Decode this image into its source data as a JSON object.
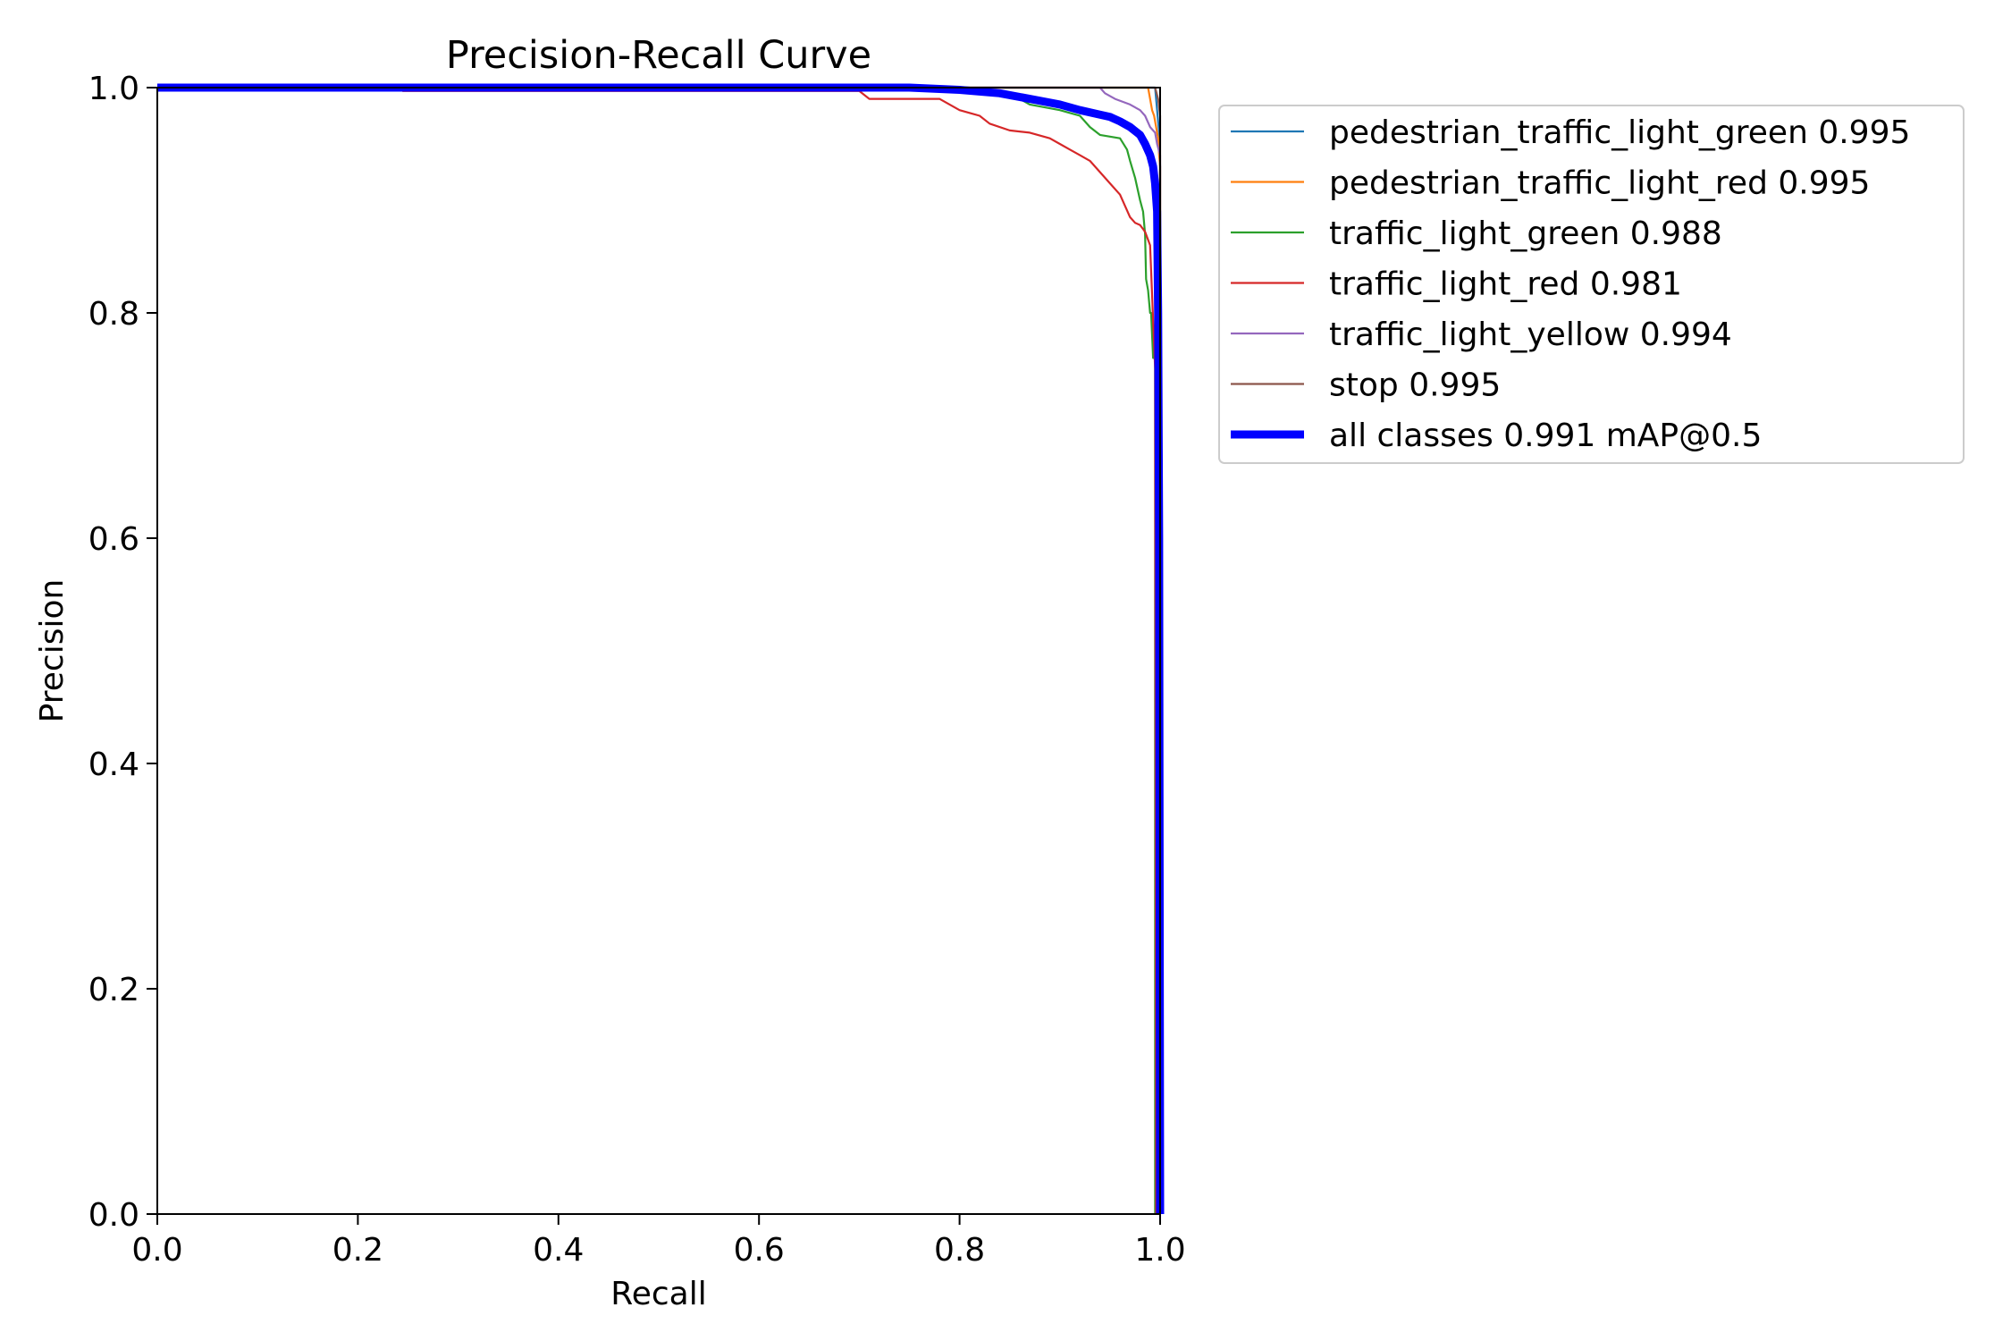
{
  "chart_data": {
    "type": "line",
    "title": "Precision-Recall Curve",
    "xlabel": "Recall",
    "ylabel": "Precision",
    "xlim": [
      0.0,
      1.0
    ],
    "ylim": [
      0.0,
      1.0
    ],
    "x_ticks": [
      "0.0",
      "0.2",
      "0.4",
      "0.6",
      "0.8",
      "1.0"
    ],
    "y_ticks": [
      "0.0",
      "0.2",
      "0.4",
      "0.6",
      "0.8",
      "1.0"
    ],
    "grid": false,
    "legend_position": "outside-right",
    "series": [
      {
        "name": "pedestrian_traffic_light_green 0.995",
        "color": "#1f77b4",
        "width": "thin",
        "points": [
          [
            0,
            1
          ],
          [
            0.995,
            1
          ],
          [
            0.996,
            0.99
          ],
          [
            0.997,
            0.98
          ],
          [
            0.998,
            0.97
          ],
          [
            0.999,
            0.96
          ],
          [
            1.0,
            0.93
          ],
          [
            1.0,
            0.0
          ]
        ]
      },
      {
        "name": "pedestrian_traffic_light_red 0.995",
        "color": "#ff7f0e",
        "width": "thin",
        "points": [
          [
            0,
            1
          ],
          [
            0.988,
            1
          ],
          [
            0.99,
            0.99
          ],
          [
            0.992,
            0.98
          ],
          [
            0.994,
            0.975
          ],
          [
            0.996,
            0.965
          ],
          [
            0.998,
            0.955
          ],
          [
            0.999,
            0.94
          ],
          [
            1.0,
            0.93
          ],
          [
            1.0,
            0.0
          ]
        ]
      },
      {
        "name": "traffic_light_green 0.988",
        "color": "#2ca02c",
        "width": "thin",
        "points": [
          [
            0,
            1
          ],
          [
            0.7,
            1
          ],
          [
            0.78,
            0.998
          ],
          [
            0.82,
            0.995
          ],
          [
            0.86,
            0.99
          ],
          [
            0.87,
            0.985
          ],
          [
            0.9,
            0.98
          ],
          [
            0.92,
            0.975
          ],
          [
            0.93,
            0.965
          ],
          [
            0.94,
            0.958
          ],
          [
            0.96,
            0.955
          ],
          [
            0.967,
            0.945
          ],
          [
            0.97,
            0.935
          ],
          [
            0.975,
            0.92
          ],
          [
            0.98,
            0.9
          ],
          [
            0.983,
            0.89
          ],
          [
            0.985,
            0.87
          ],
          [
            0.986,
            0.83
          ],
          [
            0.988,
            0.82
          ],
          [
            0.99,
            0.8
          ],
          [
            0.991,
            0.8
          ],
          [
            0.993,
            0.76
          ],
          [
            0.995,
            0.76
          ],
          [
            0.995,
            0.0
          ]
        ]
      },
      {
        "name": "traffic_light_red 0.981",
        "color": "#d62728",
        "width": "thin",
        "points": [
          [
            0,
            1
          ],
          [
            0.24,
            1
          ],
          [
            0.245,
            0.997
          ],
          [
            0.7,
            0.997
          ],
          [
            0.71,
            0.99
          ],
          [
            0.78,
            0.99
          ],
          [
            0.8,
            0.98
          ],
          [
            0.82,
            0.975
          ],
          [
            0.83,
            0.968
          ],
          [
            0.85,
            0.962
          ],
          [
            0.87,
            0.96
          ],
          [
            0.89,
            0.955
          ],
          [
            0.9,
            0.95
          ],
          [
            0.91,
            0.945
          ],
          [
            0.92,
            0.94
          ],
          [
            0.93,
            0.935
          ],
          [
            0.94,
            0.925
          ],
          [
            0.95,
            0.915
          ],
          [
            0.96,
            0.905
          ],
          [
            0.965,
            0.895
          ],
          [
            0.97,
            0.885
          ],
          [
            0.975,
            0.88
          ],
          [
            0.98,
            0.878
          ],
          [
            0.985,
            0.872
          ],
          [
            0.99,
            0.86
          ],
          [
            0.995,
            0.75
          ],
          [
            0.996,
            0.0
          ]
        ]
      },
      {
        "name": "traffic_light_yellow 0.994",
        "color": "#9467bd",
        "width": "thin",
        "points": [
          [
            0,
            1
          ],
          [
            0.94,
            1
          ],
          [
            0.945,
            0.995
          ],
          [
            0.955,
            0.99
          ],
          [
            0.97,
            0.985
          ],
          [
            0.98,
            0.98
          ],
          [
            0.985,
            0.975
          ],
          [
            0.99,
            0.965
          ],
          [
            0.995,
            0.96
          ],
          [
            0.997,
            0.95
          ],
          [
            1.0,
            0.94
          ],
          [
            1.0,
            0.0
          ]
        ]
      },
      {
        "name": "stop 0.995",
        "color": "#8c564b",
        "width": "thin",
        "points": [
          [
            0,
            1
          ],
          [
            0.995,
            1
          ],
          [
            0.998,
            0.99
          ],
          [
            1.0,
            0.975
          ],
          [
            1.0,
            0.0
          ]
        ]
      },
      {
        "name": "all classes 0.991 mAP@0.5",
        "color": "#0000ff",
        "width": "thick",
        "points": [
          [
            0,
            1
          ],
          [
            0.75,
            1
          ],
          [
            0.8,
            0.998
          ],
          [
            0.84,
            0.995
          ],
          [
            0.87,
            0.99
          ],
          [
            0.9,
            0.985
          ],
          [
            0.92,
            0.98
          ],
          [
            0.94,
            0.976
          ],
          [
            0.95,
            0.974
          ],
          [
            0.96,
            0.97
          ],
          [
            0.97,
            0.965
          ],
          [
            0.98,
            0.958
          ],
          [
            0.985,
            0.95
          ],
          [
            0.99,
            0.94
          ],
          [
            0.993,
            0.93
          ],
          [
            0.995,
            0.915
          ],
          [
            0.997,
            0.89
          ],
          [
            0.998,
            0.8
          ],
          [
            0.999,
            0.6
          ],
          [
            1.0,
            0.0
          ]
        ]
      }
    ]
  }
}
